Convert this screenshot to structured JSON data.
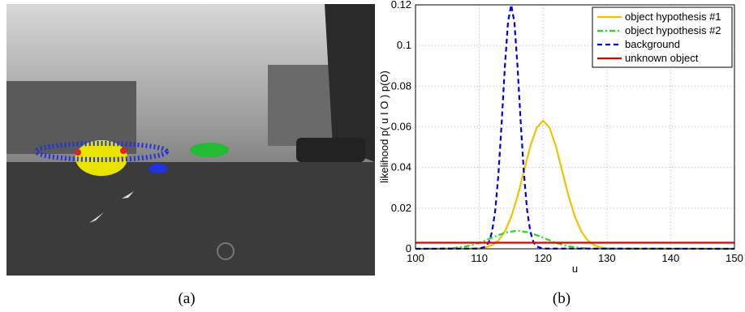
{
  "captions": [
    "(a)",
    "(b)"
  ],
  "chart_data": {
    "type": "line",
    "xlabel": "u",
    "ylabel": "likelihood p( u I O ) p(O)",
    "xlim": [
      100,
      150
    ],
    "ylim": [
      0,
      0.12
    ],
    "xticks": [
      100,
      110,
      120,
      130,
      140,
      150
    ],
    "yticks": [
      0,
      0.02,
      0.04,
      0.06,
      0.08,
      0.1,
      0.12
    ],
    "grid": true,
    "legend": "upper right",
    "series": [
      {
        "name": "object hypothesis #1",
        "color": "#f2c200",
        "dash": "solid",
        "x": [
          100,
          110,
          111,
          112,
          113,
          114,
          115,
          116,
          117,
          118,
          119,
          120,
          121,
          122,
          123,
          124,
          125,
          126,
          127,
          128,
          129,
          130,
          150
        ],
        "values": [
          0,
          0.0002,
          0.0007,
          0.0018,
          0.0041,
          0.0085,
          0.0157,
          0.0259,
          0.0382,
          0.0505,
          0.0596,
          0.063,
          0.0596,
          0.0505,
          0.0382,
          0.0259,
          0.0157,
          0.0085,
          0.0041,
          0.0018,
          0.0007,
          0.0002,
          0
        ]
      },
      {
        "name": "object hypothesis #2",
        "color": "#22dd22",
        "dash": "dashdot",
        "x": [
          100,
          104,
          106,
          108,
          110,
          112,
          114,
          116,
          118,
          120,
          122,
          124,
          126,
          128,
          150
        ],
        "values": [
          0,
          0.0001,
          0.0004,
          0.0012,
          0.0029,
          0.0055,
          0.0079,
          0.009,
          0.0079,
          0.0055,
          0.0029,
          0.0012,
          0.0004,
          0.0001,
          0
        ]
      },
      {
        "name": "background",
        "color": "#0000dd",
        "dash": "dash",
        "x": [
          100,
          110,
          111,
          111.5,
          112,
          112.5,
          113,
          113.5,
          114,
          114.5,
          115,
          115.5,
          116,
          116.5,
          117,
          117.5,
          118,
          118.5,
          119,
          120,
          150
        ],
        "values": [
          0,
          0.0001,
          0.0011,
          0.0032,
          0.0084,
          0.0189,
          0.0368,
          0.0617,
          0.0893,
          0.1115,
          0.12,
          0.1115,
          0.0893,
          0.0617,
          0.0368,
          0.0189,
          0.0084,
          0.0032,
          0.0011,
          0.0001,
          0
        ]
      },
      {
        "name": "unknown object",
        "color": "#e00000",
        "dash": "solid",
        "x": [
          100,
          150
        ],
        "values": [
          0.003,
          0.003
        ]
      }
    ]
  }
}
